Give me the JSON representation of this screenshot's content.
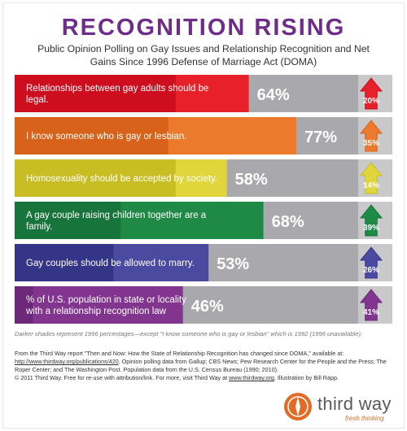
{
  "header": {
    "title": "RECOGNITION RISING",
    "subtitle": "Public Opinion Polling on Gay Issues and Relationship Recognition and Net Gains Since 1996 Defense of Marriage Act (DOMA)"
  },
  "chart_data": {
    "type": "bar",
    "orientation": "horizontal",
    "xlim": [
      0,
      100
    ],
    "categories": [
      "Relationships between gay adults should be legal.",
      "I know someone who is gay or lesbian.",
      "Homosexuality should be accepted by society.",
      "A gay couple raising children together are a family.",
      "Gay couples should be allowed to marry.",
      "% of U.S. population in state or locality with a relationship recognition law"
    ],
    "series": [
      {
        "values": [
          64,
          77,
          58,
          68,
          53,
          46
        ]
      },
      {
        "values": [
          44,
          42,
          44,
          29,
          27,
          5
        ]
      }
    ],
    "value_labels": [
      "64%",
      "77%",
      "58%",
      "68%",
      "53%",
      "46%"
    ],
    "gains": [
      20,
      35,
      14,
      39,
      26,
      41
    ],
    "gain_labels": [
      "20%",
      "35%",
      "14%",
      "39%",
      "26%",
      "41%"
    ],
    "colors": {
      "current": [
        "#e8202a",
        "#ec7a2c",
        "#e0d53a",
        "#1f8a46",
        "#4a4aa0",
        "#82358f"
      ],
      "earlier": [
        "#cc0e1e",
        "#d9621b",
        "#c9bd24",
        "#17743a",
        "#353587",
        "#6c2879"
      ],
      "track": "#a9a9ad"
    }
  },
  "notes": {
    "footnote": "Darker shades represent 1996 percentages—except \"I know someone who is gay or lesbian\" which is 1992 (1996 unavailable).",
    "source_prefix": "From the Third Way report \"Then and Now: How the State of Relationship Recognition has changed since DOMA,\" available at: ",
    "source_link": "http://www.thirdway.org/publications/420",
    "source_rest": ". Opinion polling data from Gallup; CBS News; Pew Research Center for the People and the Press; The Roper Center; and The Washington Post. Population data from the U.S. Census Bureau (1990; 2010).",
    "copyright_prefix": "© 2011 Third Way. Free for re-use with attribution/link. For more, visit Third Way at ",
    "copyright_link": "www.thirdway.org",
    "copyright_suffix": ". Illustration by Bill Rapp."
  },
  "logo": {
    "name": "third way",
    "tagline": "fresh thinking",
    "accent": "#e36b25"
  }
}
